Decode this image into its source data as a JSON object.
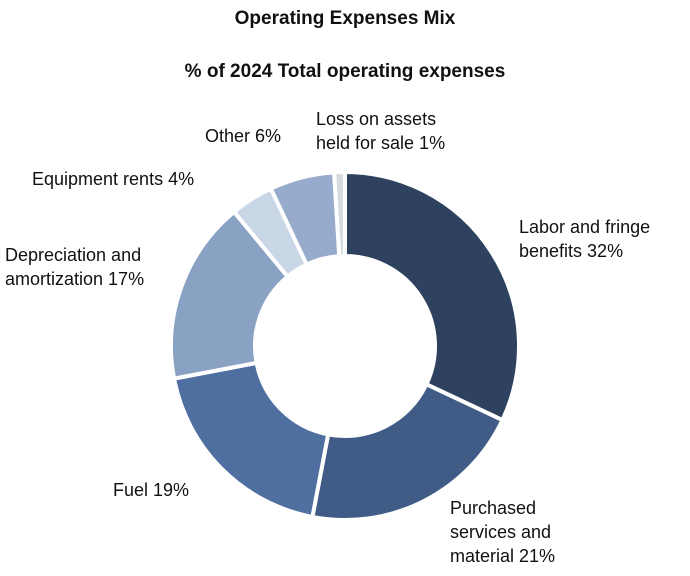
{
  "chart_data": {
    "type": "pie",
    "variant": "donut",
    "title": "Operating Expenses Mix",
    "subtitle": "% of 2024 Total operating expenses",
    "slices": [
      {
        "label": "Labor and fringe benefits 32%",
        "value": 32,
        "color": "#2e425f"
      },
      {
        "label": "Purchased services and material 21%",
        "value": 21,
        "color": "#405c86"
      },
      {
        "label": "Fuel 19%",
        "value": 19,
        "color": "#4e6f9f"
      },
      {
        "label": "Depreciation and amortization 17%",
        "value": 17,
        "color": "#89a2c4"
      },
      {
        "label": "Equipment rents 4%",
        "value": 4,
        "color": "#c9d6e6"
      },
      {
        "label": "Other 6%",
        "value": 6,
        "color": "#97abcc"
      },
      {
        "label": "Loss on assets held for sale 1%",
        "value": 1,
        "color": "#d6dbe2"
      }
    ]
  }
}
